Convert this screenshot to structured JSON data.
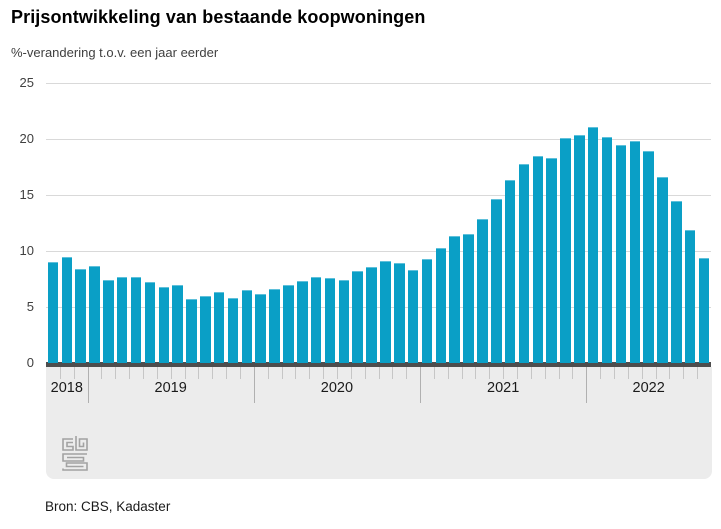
{
  "header": {
    "title": "Prijsontwikkeling van bestaande koopwoningen",
    "subtitle": "%-verandering t.o.v. een jaar eerder"
  },
  "source": "Bron: CBS, Kadaster",
  "logo_name": "cbs-logo",
  "colors": {
    "bar": "#0a9fc6",
    "gridline": "#d9d9d9",
    "axis_line": "#4d4d4d",
    "band": "#ececec",
    "month_tick": "#c6c6c6",
    "year_separator": "#b0b0b0",
    "text": "#404040"
  },
  "chart_data": {
    "type": "bar",
    "title": "Prijsontwikkeling van bestaande koopwoningen",
    "ylabel": "%-verandering t.o.v. een jaar eerder",
    "ylim": [
      0,
      25
    ],
    "yticks": [
      0,
      5,
      10,
      15,
      20,
      25
    ],
    "grid": true,
    "legend": "none",
    "x_axis_groups": [
      "2018",
      "2019",
      "2020",
      "2021",
      "2022"
    ],
    "series": [
      {
        "year": "2018",
        "monthly_values": [
          9.0,
          9.5,
          8.4
        ]
      },
      {
        "year": "2019",
        "monthly_values": [
          8.7,
          7.4,
          7.7,
          7.7,
          7.2,
          6.8,
          7.0,
          5.7,
          6.0,
          6.3,
          5.8,
          6.5
        ]
      },
      {
        "year": "2020",
        "monthly_values": [
          6.2,
          6.6,
          7.0,
          7.3,
          7.7,
          7.6,
          7.4,
          8.2,
          8.6,
          9.1,
          8.9,
          8.3
        ]
      },
      {
        "year": "2021",
        "monthly_values": [
          9.3,
          10.3,
          11.3,
          11.5,
          12.9,
          14.6,
          16.3,
          17.8,
          18.5,
          18.3,
          20.1,
          20.4
        ]
      },
      {
        "year": "2022",
        "monthly_values": [
          21.1,
          20.2,
          19.5,
          19.8,
          18.9,
          16.6,
          14.5,
          11.9,
          9.4
        ]
      }
    ]
  }
}
